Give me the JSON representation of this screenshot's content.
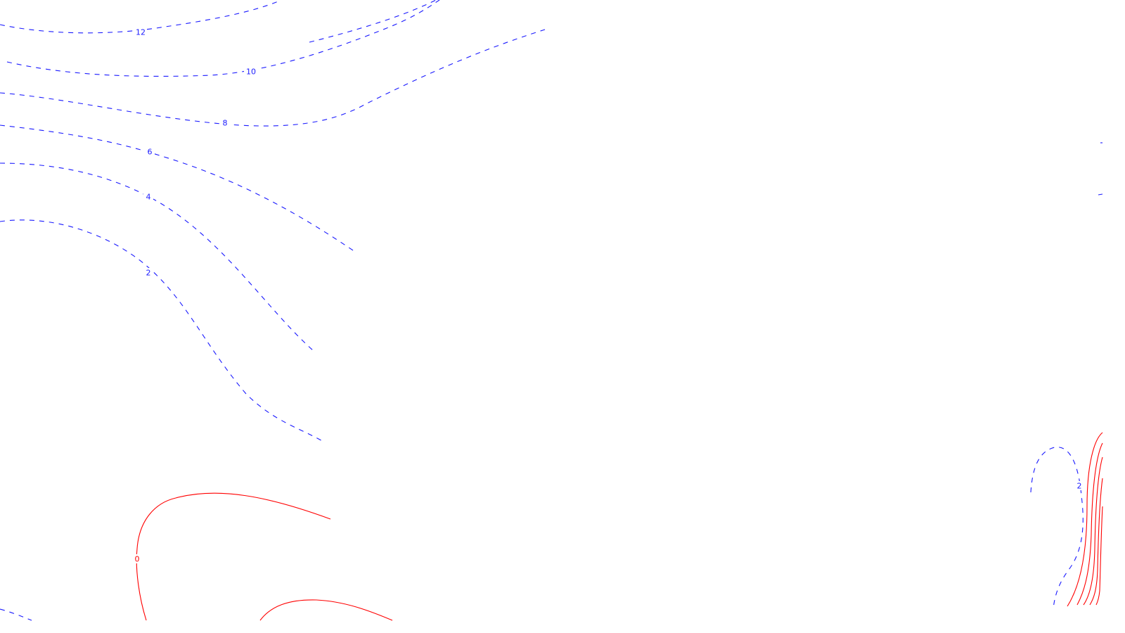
{
  "map": {
    "contour_labels": {
      "neg_12": "12",
      "neg_10": "10",
      "neg_8": "8",
      "neg_6": "6",
      "neg_4": "4",
      "neg_2": "2",
      "neg_2_right": "2",
      "pos_0": "0"
    },
    "colors": {
      "background": "#ffffff",
      "negative_contours": "#1a1aff",
      "positive_contours": "#ff0000"
    },
    "line_styles": {
      "negative_contours": "dashed",
      "positive_contours": "solid"
    }
  }
}
